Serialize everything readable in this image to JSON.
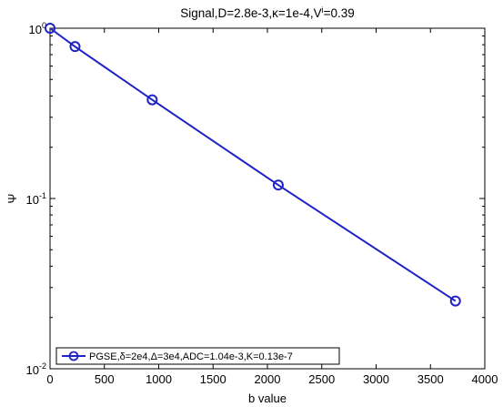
{
  "chart_data": {
    "type": "line",
    "title_parts": [
      "Signal,D=2.8e-3,",
      "κ",
      "=1e-4,V",
      "i",
      "=0.39"
    ],
    "xlabel": "b value",
    "ylabel": "Ψ",
    "x_scale": "linear",
    "y_scale": "log",
    "xlim": [
      0,
      4000
    ],
    "ylim": [
      0.01,
      1
    ],
    "x_ticks": [
      0,
      500,
      1000,
      1500,
      2000,
      2500,
      3000,
      3500,
      4000
    ],
    "x_tick_labels": [
      "0",
      "500",
      "1000",
      "1500",
      "2000",
      "2500",
      "3000",
      "3500",
      "4000"
    ],
    "y_ticks": [
      0.01,
      0.1,
      1
    ],
    "y_tick_labels": [
      {
        "base": "10",
        "exp": "-2"
      },
      {
        "base": "10",
        "exp": "-1"
      },
      {
        "base": "10",
        "exp": "0"
      }
    ],
    "grid": false,
    "legend_position": "bottom-left",
    "series": [
      {
        "name": "PGSE,δ=2e4,Δ=3e4,ADC=1.04e-3,K=0.13e-7",
        "color": "#1f22c7",
        "marker": "circle",
        "x": [
          0,
          230,
          940,
          2100,
          3730
        ],
        "y": [
          1.0,
          0.78,
          0.38,
          0.12,
          0.025
        ]
      }
    ]
  }
}
